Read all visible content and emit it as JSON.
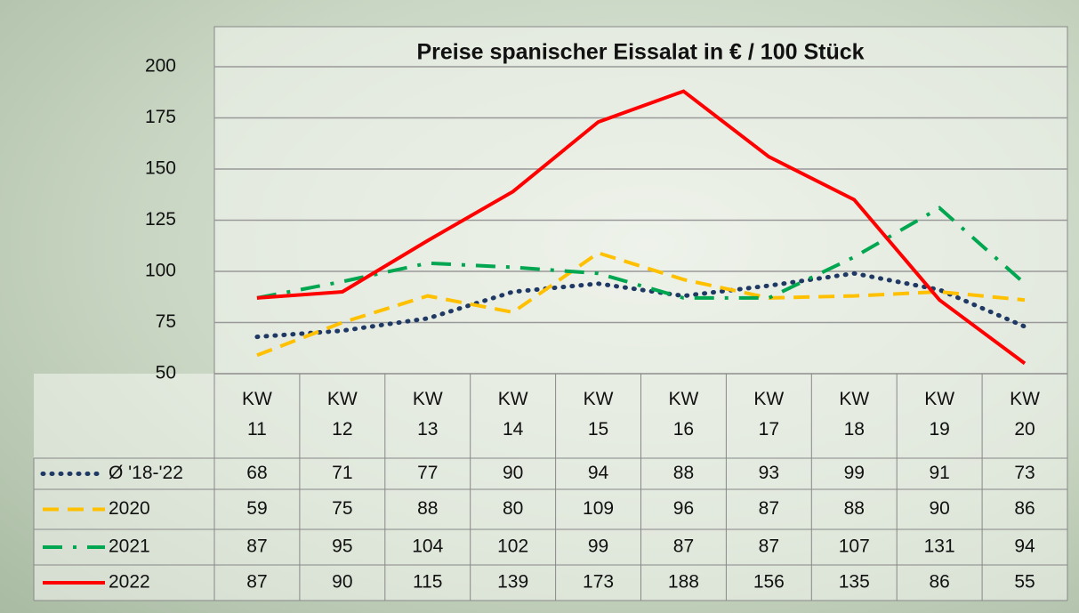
{
  "chart_data": {
    "type": "line",
    "title": "Preise spanischer Eissalat in € / 100 Stück",
    "categories": [
      "KW 11",
      "KW 12",
      "KW 13",
      "KW 14",
      "KW 15",
      "KW 16",
      "KW 17",
      "KW 18",
      "KW 19",
      "KW 20"
    ],
    "series": [
      {
        "name": "Ø '18-'22",
        "color": "#1f3864",
        "dash": "dotted",
        "values": [
          68,
          71,
          77,
          90,
          94,
          88,
          93,
          99,
          91,
          73
        ]
      },
      {
        "name": "2020",
        "color": "#ffc000",
        "dash": "dashed",
        "values": [
          59,
          75,
          88,
          80,
          109,
          96,
          87,
          88,
          90,
          86
        ]
      },
      {
        "name": "2021",
        "color": "#00a650",
        "dash": "dashdot",
        "values": [
          87,
          95,
          104,
          102,
          99,
          87,
          87,
          107,
          131,
          94
        ]
      },
      {
        "name": "2022",
        "color": "#ff0000",
        "dash": "solid",
        "values": [
          87,
          90,
          115,
          139,
          173,
          188,
          156,
          135,
          86,
          55
        ]
      }
    ],
    "ylim": [
      50,
      200
    ],
    "yticks": [
      50,
      75,
      100,
      125,
      150,
      175,
      200
    ],
    "grid": true
  }
}
